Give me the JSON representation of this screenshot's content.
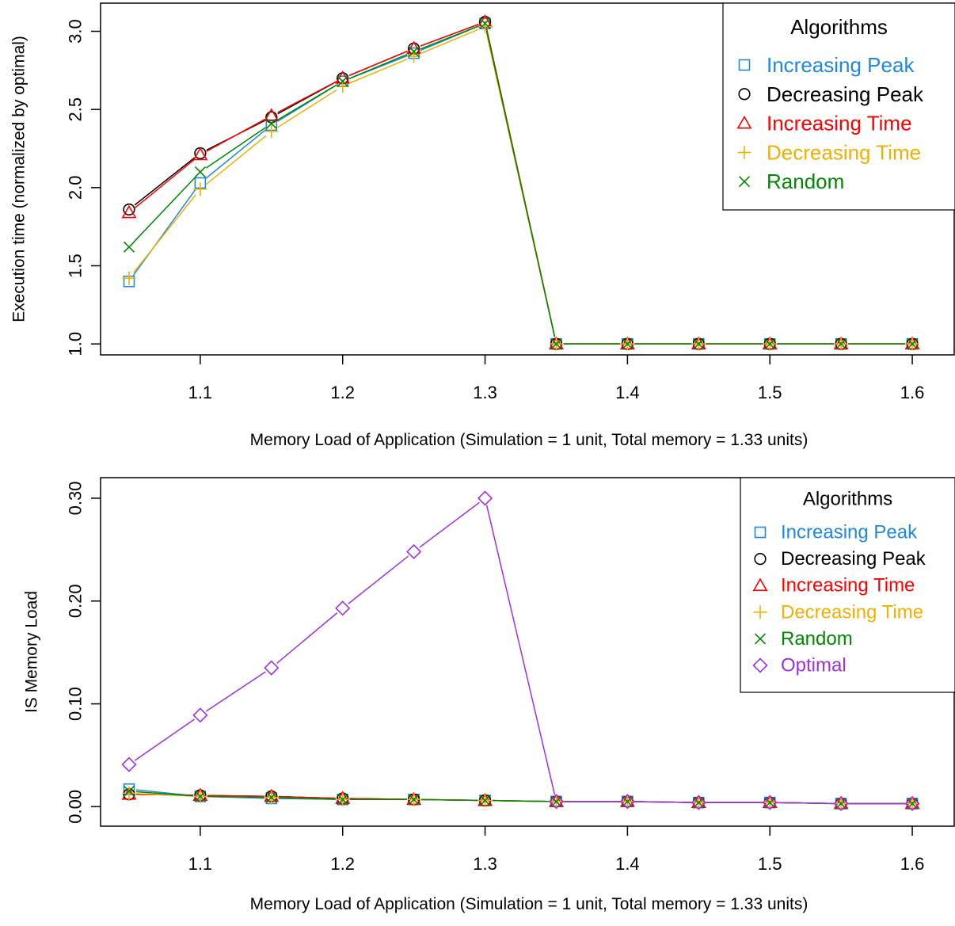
{
  "chart_data": [
    {
      "type": "line",
      "ylabel": "Execution time (normalized by optimal)",
      "xlabel": "Memory Load of Application (Simulation = 1 unit, Total memory = 1.33 units)",
      "x": [
        1.05,
        1.1,
        1.15,
        1.2,
        1.25,
        1.3,
        1.35,
        1.4,
        1.45,
        1.5,
        1.55,
        1.6
      ],
      "xticks": [
        "1.1",
        "1.2",
        "1.3",
        "1.4",
        "1.5",
        "1.6"
      ],
      "yticks": [
        "1.0",
        "1.5",
        "2.0",
        "2.5",
        "3.0"
      ],
      "xlim": [
        1.03,
        1.63
      ],
      "ylim": [
        0.93,
        3.18
      ],
      "grid": false,
      "legend_title": "Algorithms",
      "legend_position": "top-right",
      "series": [
        {
          "name": "Increasing Peak",
          "color": "#1E88E5",
          "marker": "square",
          "values": [
            1.4,
            2.03,
            2.4,
            2.68,
            2.86,
            3.05,
            1.0,
            1.0,
            1.0,
            1.0,
            1.0,
            1.0
          ]
        },
        {
          "name": "Decreasing Peak",
          "color": "#000000",
          "marker": "circle",
          "values": [
            1.86,
            2.22,
            2.45,
            2.7,
            2.89,
            3.06,
            1.0,
            1.0,
            1.0,
            1.0,
            1.0,
            1.0
          ]
        },
        {
          "name": "Increasing Time",
          "color": "#FF0000",
          "marker": "triangle",
          "values": [
            1.84,
            2.21,
            2.46,
            2.7,
            2.89,
            3.06,
            1.0,
            1.0,
            1.0,
            1.0,
            1.0,
            1.0
          ]
        },
        {
          "name": "Decreasing Time",
          "color": "#F0B000",
          "marker": "plus",
          "values": [
            1.42,
            1.99,
            2.36,
            2.65,
            2.84,
            3.03,
            1.0,
            1.0,
            1.0,
            1.0,
            1.0,
            1.0
          ]
        },
        {
          "name": "Random",
          "color": "#008800",
          "marker": "cross",
          "values": [
            1.62,
            2.1,
            2.41,
            2.68,
            2.87,
            3.05,
            1.0,
            1.0,
            1.0,
            1.0,
            1.0,
            1.0
          ]
        }
      ]
    },
    {
      "type": "line",
      "ylabel": "IS Memory Load",
      "xlabel": "Memory Load of Application (Simulation = 1 unit, Total memory = 1.33 units)",
      "x": [
        1.05,
        1.1,
        1.15,
        1.2,
        1.25,
        1.3,
        1.35,
        1.4,
        1.45,
        1.5,
        1.55,
        1.6
      ],
      "xticks": [
        "1.1",
        "1.2",
        "1.3",
        "1.4",
        "1.5",
        "1.6"
      ],
      "yticks": [
        "0.00",
        "0.10",
        "0.20",
        "0.30"
      ],
      "xlim": [
        1.03,
        1.63
      ],
      "ylim": [
        -0.019,
        0.32
      ],
      "grid": false,
      "legend_title": "Algorithms",
      "legend_position": "top-right",
      "series": [
        {
          "name": "Increasing Peak",
          "color": "#1E88E5",
          "marker": "square",
          "values": [
            0.017,
            0.01,
            0.008,
            0.007,
            0.007,
            0.006,
            0.005,
            0.005,
            0.004,
            0.004,
            0.003,
            0.003
          ]
        },
        {
          "name": "Decreasing Peak",
          "color": "#000000",
          "marker": "circle",
          "values": [
            0.012,
            0.011,
            0.01,
            0.008,
            0.007,
            0.006,
            0.005,
            0.005,
            0.004,
            0.004,
            0.003,
            0.003
          ]
        },
        {
          "name": "Increasing Time",
          "color": "#FF0000",
          "marker": "triangle",
          "values": [
            0.012,
            0.011,
            0.01,
            0.008,
            0.007,
            0.006,
            0.005,
            0.005,
            0.004,
            0.004,
            0.003,
            0.003
          ]
        },
        {
          "name": "Decreasing Time",
          "color": "#F0B000",
          "marker": "plus",
          "values": [
            0.013,
            0.01,
            0.009,
            0.007,
            0.007,
            0.006,
            0.005,
            0.005,
            0.004,
            0.004,
            0.003,
            0.003
          ]
        },
        {
          "name": "Random",
          "color": "#008800",
          "marker": "cross",
          "values": [
            0.015,
            0.01,
            0.009,
            0.007,
            0.007,
            0.006,
            0.005,
            0.005,
            0.004,
            0.004,
            0.003,
            0.003
          ]
        },
        {
          "name": "Optimal",
          "color": "#A030E0",
          "marker": "diamond",
          "values": [
            0.041,
            0.089,
            0.135,
            0.193,
            0.248,
            0.3,
            0.005,
            0.005,
            0.004,
            0.004,
            0.003,
            0.003
          ]
        }
      ]
    }
  ]
}
